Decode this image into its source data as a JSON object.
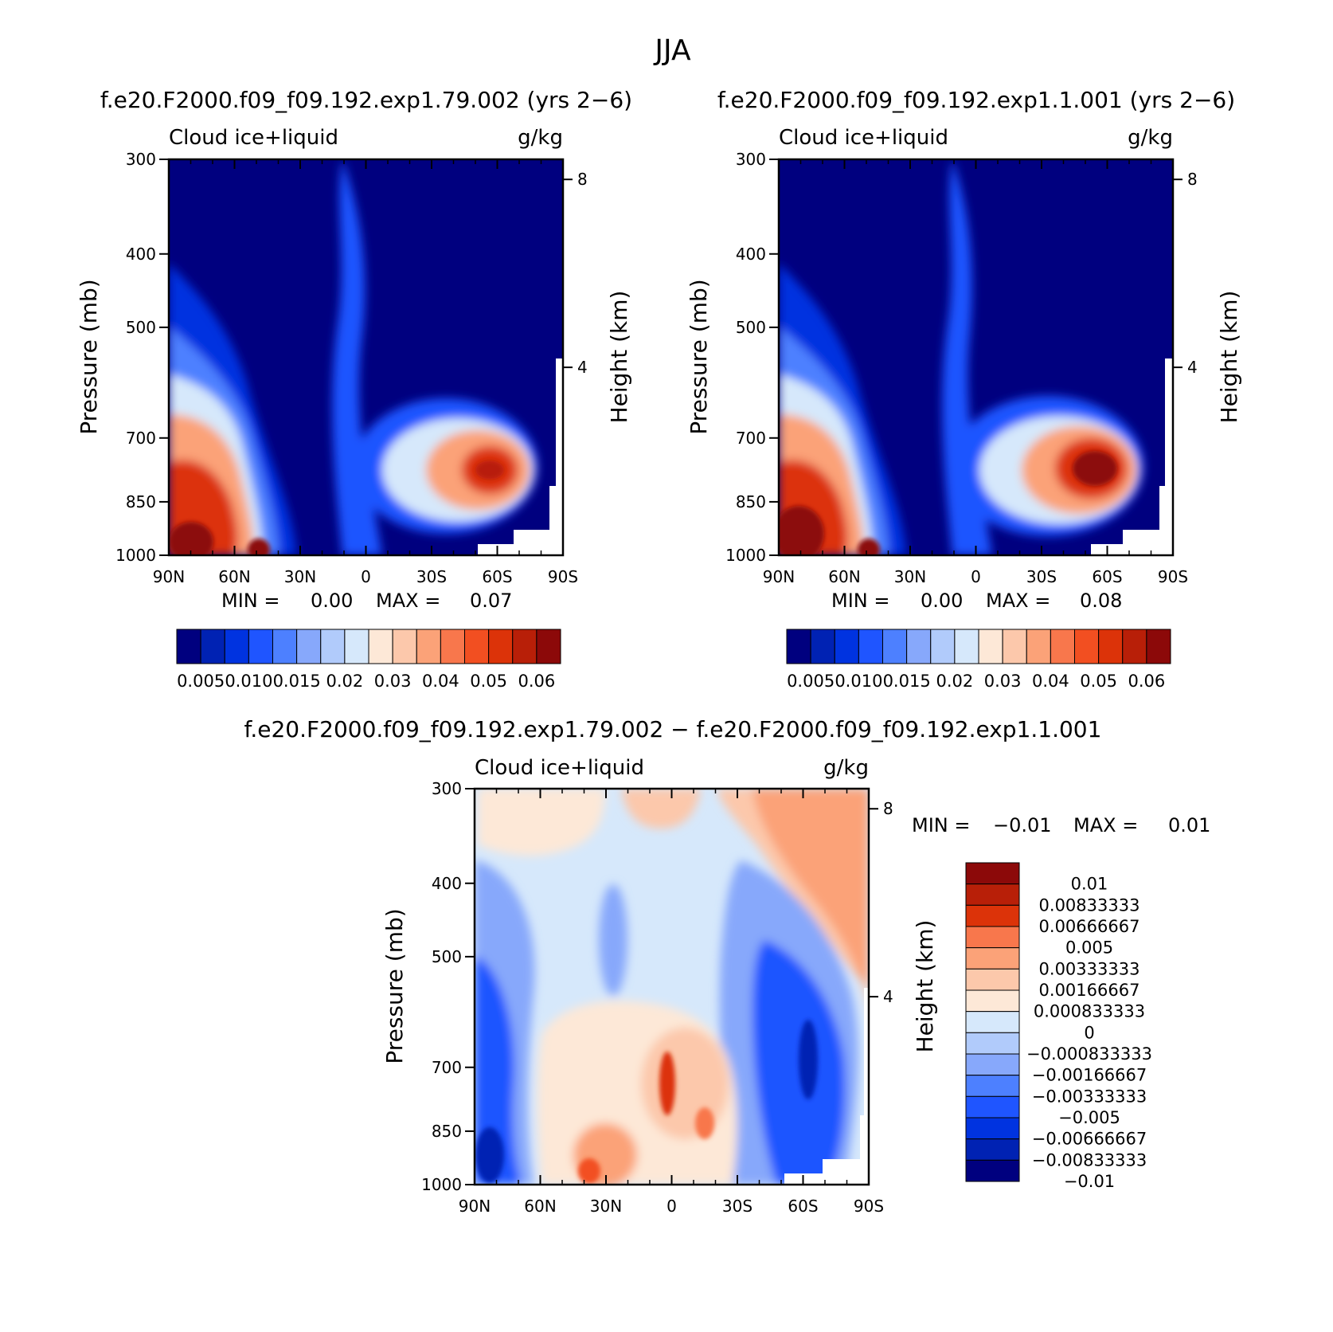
{
  "figure_title": "JJA",
  "panel_left": {
    "title": "f.e20.F2000.f09_f09.192.exp1.79.002 (yrs 2−6)",
    "left_label": "Cloud  ice+liquid",
    "right_label": "g/kg",
    "ylabel": "Pressure (mb)",
    "y2label": "Height (km)",
    "min_label": "MIN =",
    "min_value": "0.00",
    "max_label": "MAX =",
    "max_value": "0.07"
  },
  "panel_right": {
    "title": "f.e20.F2000.f09_f09.192.exp1.1.001 (yrs 2−6)",
    "left_label": "Cloud  ice+liquid",
    "right_label": "g/kg",
    "ylabel": "Pressure (mb)",
    "y2label": "Height (km)",
    "min_label": "MIN =",
    "min_value": "0.00",
    "max_label": "MAX =",
    "max_value": "0.08"
  },
  "panel_diff": {
    "title": "f.e20.F2000.f09_f09.192.exp1.79.002 − f.e20.F2000.f09_f09.192.exp1.1.001",
    "left_label": "Cloud  ice+liquid",
    "right_label": "g/kg",
    "ylabel": "Pressure (mb)",
    "y2label": "Height (km)",
    "min_label": "MIN =",
    "min_value": "−0.01",
    "max_label": "MAX =",
    "max_value": "0.01"
  },
  "axes": {
    "x_ticks": [
      "90N",
      "60N",
      "30N",
      "0",
      "30S",
      "60S",
      "90S"
    ],
    "y_ticks": [
      "300",
      "400",
      "500",
      "700",
      "850",
      "1000"
    ],
    "y_tick_values": [
      300,
      400,
      500,
      700,
      850,
      1000
    ],
    "y2_ticks": [
      "8",
      "4"
    ],
    "y2_tick_values": [
      8,
      4
    ]
  },
  "colors": {
    "top_bar": [
      "#00007f",
      "#0022b3",
      "#0033e0",
      "#1f55ff",
      "#4d80ff",
      "#87a8fb",
      "#b1cbfb",
      "#d6e8fb",
      "#fde8d7",
      "#fcc8ab",
      "#fba278",
      "#f8774c",
      "#f24f21",
      "#dc3309",
      "#b81f08",
      "#8c0909"
    ],
    "diff_bar": [
      "#8c0909",
      "#b81f08",
      "#dc3309",
      "#f8774c",
      "#fba278",
      "#fcc8ab",
      "#fde8d7",
      "#d6e8fb",
      "#b1cbfb",
      "#87a8fb",
      "#4d80ff",
      "#1f55ff",
      "#0033e0",
      "#0022b3",
      "#00007f"
    ]
  },
  "chart_data": [
    {
      "type": "heatmap",
      "title": "f.e20.F2000.f09_f09.192.exp1.79.002 (yrs 2−6)",
      "variable": "Cloud  ice+liquid",
      "units": "g/kg",
      "xlabel": "",
      "ylabel": "Pressure (mb)",
      "y2label": "Height (km)",
      "x": [
        "90N",
        "60N",
        "30N",
        "0",
        "30S",
        "60S",
        "90S"
      ],
      "y_ticks": [
        300,
        400,
        500,
        700,
        850,
        1000
      ],
      "y_scale": "log",
      "ylim": [
        1000,
        300
      ],
      "colorbar_levels": [
        "0.005",
        "0.010",
        "0.015",
        "0.02",
        "0.03",
        "0.04",
        "0.05",
        "0.06"
      ],
      "min": 0.0,
      "max": 0.07,
      "maxima": [
        {
          "lat": "~40S",
          "pressure": 850,
          "value": 0.07
        },
        {
          "lat": "~80N",
          "pressure": 1000,
          "value": 0.06
        }
      ]
    },
    {
      "type": "heatmap",
      "title": "f.e20.F2000.f09_f09.192.exp1.1.001 (yrs 2−6)",
      "variable": "Cloud  ice+liquid",
      "units": "g/kg",
      "xlabel": "",
      "ylabel": "Pressure (mb)",
      "y2label": "Height (km)",
      "x": [
        "90N",
        "60N",
        "30N",
        "0",
        "30S",
        "60S",
        "90S"
      ],
      "y_ticks": [
        300,
        400,
        500,
        700,
        850,
        1000
      ],
      "y_scale": "log",
      "ylim": [
        1000,
        300
      ],
      "colorbar_levels": [
        "0.005",
        "0.010",
        "0.015",
        "0.02",
        "0.03",
        "0.04",
        "0.05",
        "0.06"
      ],
      "min": 0.0,
      "max": 0.08,
      "maxima": [
        {
          "lat": "~45S",
          "pressure": 850,
          "value": 0.08
        },
        {
          "lat": "~85N",
          "pressure": 1000,
          "value": 0.06
        }
      ]
    },
    {
      "type": "heatmap",
      "title": "f.e20.F2000.f09_f09.192.exp1.79.002 − f.e20.F2000.f09_f09.192.exp1.1.001",
      "variable": "Cloud  ice+liquid",
      "units": "g/kg",
      "xlabel": "",
      "ylabel": "Pressure (mb)",
      "y2label": "Height (km)",
      "x": [
        "90N",
        "60N",
        "30N",
        "0",
        "30S",
        "60S",
        "90S"
      ],
      "y_ticks": [
        300,
        400,
        500,
        700,
        850,
        1000
      ],
      "y_scale": "log",
      "ylim": [
        1000,
        300
      ],
      "colorbar_levels": [
        "0.01",
        "0.00833333",
        "0.00666667",
        "0.005",
        "0.00333333",
        "0.00166667",
        "0.000833333",
        "0",
        "−0.000833333",
        "−0.00166667",
        "−0.00333333",
        "−0.005",
        "−0.00666667",
        "−0.00833333",
        "−0.01"
      ],
      "min": -0.01,
      "max": 0.01
    }
  ]
}
